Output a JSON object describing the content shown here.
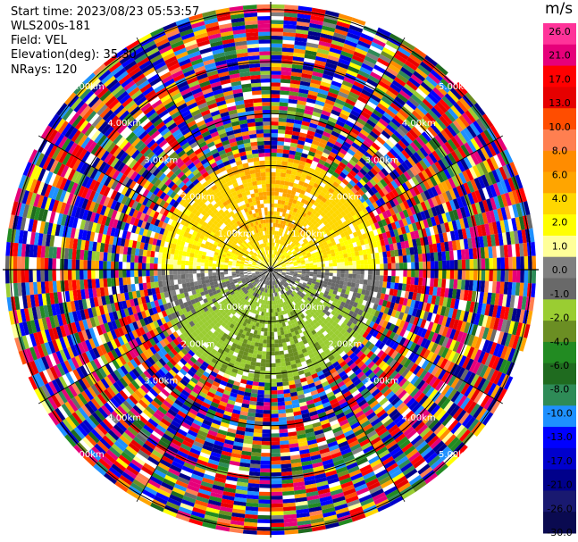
{
  "header": {
    "start_time": "Start time: 2023/08/23 05:53:57",
    "instrument": "WLS200s-181",
    "field": "Field: VEL",
    "elevation": "Elevation(deg): 35.30",
    "nrays": "NRays: 120"
  },
  "colorbar": {
    "unit": "m/s",
    "ticks": [
      "26.0",
      "21.0",
      "17.0",
      "13.0",
      "10.0",
      "8.0",
      "6.0",
      "4.0",
      "2.0",
      "1.0",
      "0.0",
      "-1.0",
      "-2.0",
      "-4.0",
      "-6.0",
      "-8.0",
      "-10.0",
      "-13.0",
      "-17.0",
      "-21.0",
      "-26.0",
      "-30.0"
    ],
    "colors": [
      "#ff3399",
      "#e6007a",
      "#ff0000",
      "#e60000",
      "#ff4d00",
      "#ff7f50",
      "#ff8c00",
      "#ffa500",
      "#ffd700",
      "#ffff00",
      "#ffff99",
      "#808080",
      "#696969",
      "#9acd32",
      "#6b8e23",
      "#228b22",
      "#1f6b1f",
      "#2e8b57",
      "#1e90ff",
      "#0000ff",
      "#0000cd",
      "#00008b",
      "#191970",
      "#0a0a50"
    ]
  },
  "chart_data": {
    "type": "heatmap",
    "projection": "polar PPI (radial velocity)",
    "field": "VEL",
    "units": "m/s",
    "elevation_deg": 35.3,
    "n_rays": 120,
    "range_rings_km": [
      1.0,
      2.0,
      3.0,
      4.0,
      5.0
    ],
    "ring_labels": [
      "1.00km",
      "2.00km",
      "3.00km",
      "4.00km",
      "5.00km"
    ],
    "spoke_interval_deg": 30,
    "color_scale_min": -30.0,
    "color_scale_max": 26.0,
    "pattern_notes": "near-range (< ~2 km): positive ~1-4 m/s to the north, negative ~-1 to -4 m/s to the south; beyond ~2 km mostly random noise spanning the full scale"
  }
}
